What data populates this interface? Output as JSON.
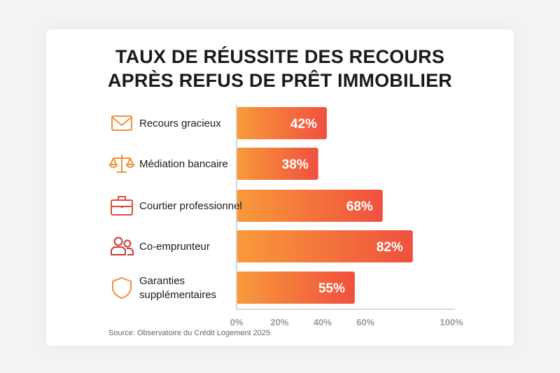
{
  "chart_data": {
    "type": "bar",
    "orientation": "horizontal",
    "title_lines": [
      "TAUX DE RÉUSSITE DES RECOURS",
      "APRÈS REFUS DE PRÊT IMMOBILIER"
    ],
    "categories": [
      {
        "label_lines": [
          "Recours gracieux"
        ],
        "icon": "envelope-icon",
        "icon_color": "#f0913a"
      },
      {
        "label_lines": [
          "Médiation bancaire"
        ],
        "icon": "scales-icon",
        "icon_color": "#f0913a"
      },
      {
        "label_lines": [
          "Courtier professionnel"
        ],
        "icon": "briefcase-icon",
        "icon_color": "#e04b3a"
      },
      {
        "label_lines": [
          "Co-emprunteur"
        ],
        "icon": "users-icon",
        "icon_color": "#c93a3a"
      },
      {
        "label_lines": [
          "Garanties",
          "supplémentaires"
        ],
        "icon": "shield-icon",
        "icon_color": "#f0913a"
      }
    ],
    "values": [
      42,
      38,
      68,
      82,
      55
    ],
    "data_labels": [
      "42%",
      "38%",
      "68%",
      "82%",
      "55%"
    ],
    "xlim": [
      0,
      100
    ],
    "xticks": [
      0,
      20,
      40,
      60,
      100
    ],
    "xtick_labels": [
      "0%",
      "20%",
      "40%",
      "60%",
      "100%"
    ],
    "grid": false,
    "bar_gradient": [
      "#f89a3a",
      "#f0503e"
    ],
    "source": "Source: Observatoire du Crédit Logement 2025"
  }
}
